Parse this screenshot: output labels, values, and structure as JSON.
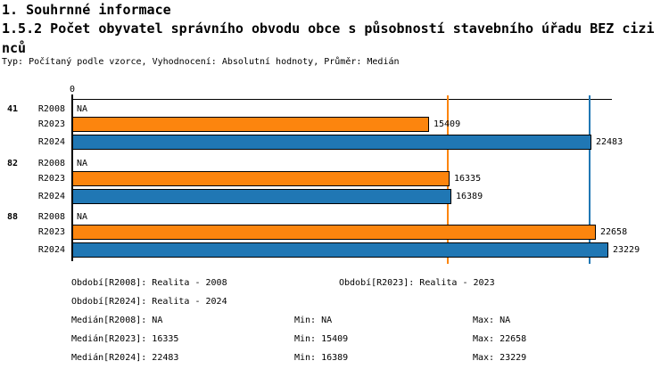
{
  "header": {
    "title": "1. Souhrnné informace",
    "subtitle": "1.5.2 Počet obyvatel správního obvodu obce s působností stavebního úřadu BEZ cizinců",
    "meta": "Typ: Počítaný podle vzorce, Vyhodnocení: Absolutní hodnoty, Průměr: Medián"
  },
  "colors": {
    "bar_orange": "#FC850E",
    "bar_blue": "#2077B4",
    "axis": "#000000"
  },
  "chart_data": {
    "type": "bar",
    "orientation": "horizontal",
    "title": "1.5.2 Počet obyvatel správního obvodu obce s působností stavebního úřadu BEZ cizinců",
    "xlabel": "",
    "ylabel": "",
    "xlim": [
      0,
      23450
    ],
    "x_zero_tick_label": "0",
    "grid": false,
    "series_colors": {
      "R2008": null,
      "R2023": "#FC850E",
      "R2024": "#2077B4"
    },
    "groups": [
      {
        "label": "41",
        "rows": [
          {
            "series": "R2008",
            "value": "NA"
          },
          {
            "series": "R2023",
            "value": 15409
          },
          {
            "series": "R2024",
            "value": 22483
          }
        ]
      },
      {
        "label": "82",
        "rows": [
          {
            "series": "R2008",
            "value": "NA"
          },
          {
            "series": "R2023",
            "value": 16335
          },
          {
            "series": "R2024",
            "value": 16389
          }
        ]
      },
      {
        "label": "88",
        "rows": [
          {
            "series": "R2008",
            "value": "NA"
          },
          {
            "series": "R2023",
            "value": 22658
          },
          {
            "series": "R2024",
            "value": 23229
          }
        ]
      }
    ],
    "ref_lines": [
      {
        "name": "median-R2023",
        "value": 16335,
        "color": "#FC850E"
      },
      {
        "name": "median-R2024",
        "value": 22483,
        "color": "#2077B4"
      }
    ]
  },
  "legend": {
    "period_r2008": "Období[R2008]: Realita - 2008",
    "period_r2023": "Období[R2023]: Realita - 2023",
    "period_r2024": "Období[R2024]: Realita - 2024",
    "median_r2008": "Medián[R2008]: NA",
    "median_r2023": "Medián[R2023]: 16335",
    "median_r2024": "Medián[R2024]: 22483",
    "min_r2008": "Min: NA",
    "min_r2023": "Min: 15409",
    "min_r2024": "Min: 16389",
    "max_r2008": "Max: NA",
    "max_r2023": "Max: 22658",
    "max_r2024": "Max: 23229"
  }
}
